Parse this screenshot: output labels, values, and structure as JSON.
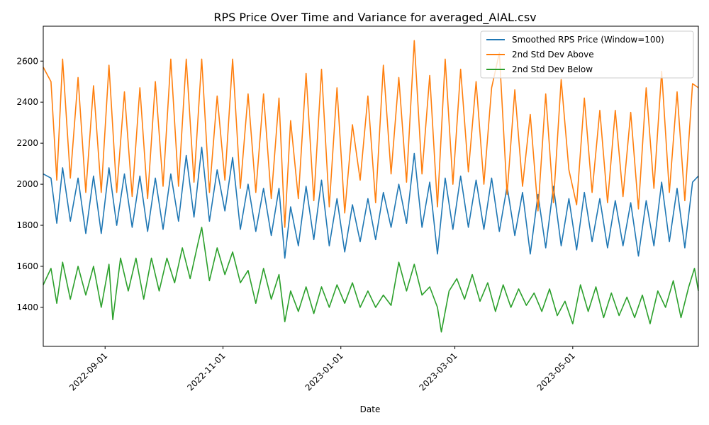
{
  "chart_data": {
    "type": "line",
    "title": "RPS Price Over Time and Variance for averaged_AIAL.csv",
    "xlabel": "Date",
    "ylabel": "",
    "x_range": [
      "2022-07-31",
      "2023-07-05"
    ],
    "ylim": [
      1210,
      2770
    ],
    "yticks": [
      1400,
      1600,
      1800,
      2000,
      2200,
      2400,
      2600
    ],
    "xticks": [
      "2022-09-01",
      "2022-11-01",
      "2023-01-01",
      "2023-03-01",
      "2023-05-01"
    ],
    "grid": false,
    "legend_position": "top-right",
    "series": [
      {
        "name": "Smoothed RPS Price (Window=100)",
        "color": "#1f77b4",
        "points": [
          [
            "2022-07-31",
            2050
          ],
          [
            "2022-08-04",
            2030
          ],
          [
            "2022-08-07",
            1810
          ],
          [
            "2022-08-10",
            2080
          ],
          [
            "2022-08-14",
            1820
          ],
          [
            "2022-08-18",
            2030
          ],
          [
            "2022-08-22",
            1760
          ],
          [
            "2022-08-26",
            2040
          ],
          [
            "2022-08-30",
            1760
          ],
          [
            "2022-09-03",
            2080
          ],
          [
            "2022-09-07",
            1800
          ],
          [
            "2022-09-11",
            2050
          ],
          [
            "2022-09-15",
            1790
          ],
          [
            "2022-09-19",
            2040
          ],
          [
            "2022-09-23",
            1770
          ],
          [
            "2022-09-27",
            2030
          ],
          [
            "2022-10-01",
            1780
          ],
          [
            "2022-10-05",
            2050
          ],
          [
            "2022-10-09",
            1820
          ],
          [
            "2022-10-13",
            2140
          ],
          [
            "2022-10-17",
            1840
          ],
          [
            "2022-10-21",
            2180
          ],
          [
            "2022-10-25",
            1820
          ],
          [
            "2022-10-29",
            2070
          ],
          [
            "2022-11-02",
            1870
          ],
          [
            "2022-11-06",
            2130
          ],
          [
            "2022-11-10",
            1780
          ],
          [
            "2022-11-14",
            2000
          ],
          [
            "2022-11-18",
            1770
          ],
          [
            "2022-11-22",
            1980
          ],
          [
            "2022-11-26",
            1750
          ],
          [
            "2022-11-30",
            1980
          ],
          [
            "2022-12-03",
            1640
          ],
          [
            "2022-12-06",
            1890
          ],
          [
            "2022-12-10",
            1700
          ],
          [
            "2022-12-14",
            1990
          ],
          [
            "2022-12-18",
            1730
          ],
          [
            "2022-12-22",
            2020
          ],
          [
            "2022-12-26",
            1700
          ],
          [
            "2022-12-30",
            1930
          ],
          [
            "2023-01-03",
            1670
          ],
          [
            "2023-01-07",
            1900
          ],
          [
            "2023-01-11",
            1720
          ],
          [
            "2023-01-15",
            1930
          ],
          [
            "2023-01-19",
            1730
          ],
          [
            "2023-01-23",
            1960
          ],
          [
            "2023-01-27",
            1790
          ],
          [
            "2023-01-31",
            2000
          ],
          [
            "2023-02-04",
            1810
          ],
          [
            "2023-02-08",
            2150
          ],
          [
            "2023-02-12",
            1790
          ],
          [
            "2023-02-16",
            2010
          ],
          [
            "2023-02-20",
            1660
          ],
          [
            "2023-02-24",
            2030
          ],
          [
            "2023-02-28",
            1780
          ],
          [
            "2023-03-04",
            2040
          ],
          [
            "2023-03-08",
            1790
          ],
          [
            "2023-03-12",
            2020
          ],
          [
            "2023-03-16",
            1780
          ],
          [
            "2023-03-20",
            2030
          ],
          [
            "2023-03-24",
            1770
          ],
          [
            "2023-03-28",
            1990
          ],
          [
            "2023-04-01",
            1750
          ],
          [
            "2023-04-05",
            1960
          ],
          [
            "2023-04-09",
            1660
          ],
          [
            "2023-04-13",
            1950
          ],
          [
            "2023-04-17",
            1690
          ],
          [
            "2023-04-21",
            1990
          ],
          [
            "2023-04-25",
            1700
          ],
          [
            "2023-04-29",
            1930
          ],
          [
            "2023-05-03",
            1680
          ],
          [
            "2023-05-07",
            1960
          ],
          [
            "2023-05-11",
            1720
          ],
          [
            "2023-05-15",
            1930
          ],
          [
            "2023-05-19",
            1690
          ],
          [
            "2023-05-23",
            1920
          ],
          [
            "2023-05-27",
            1700
          ],
          [
            "2023-05-31",
            1910
          ],
          [
            "2023-06-04",
            1650
          ],
          [
            "2023-06-08",
            1920
          ],
          [
            "2023-06-12",
            1700
          ],
          [
            "2023-06-16",
            2010
          ],
          [
            "2023-06-20",
            1720
          ],
          [
            "2023-06-24",
            1980
          ],
          [
            "2023-06-28",
            1690
          ],
          [
            "2023-07-02",
            2010
          ],
          [
            "2023-07-05",
            2040
          ]
        ]
      },
      {
        "name": "2nd Std Dev Above",
        "color": "#ff7f0e",
        "points": [
          [
            "2022-07-31",
            2570
          ],
          [
            "2022-08-04",
            2500
          ],
          [
            "2022-08-07",
            2020
          ],
          [
            "2022-08-10",
            2610
          ],
          [
            "2022-08-14",
            2030
          ],
          [
            "2022-08-18",
            2520
          ],
          [
            "2022-08-22",
            1960
          ],
          [
            "2022-08-26",
            2480
          ],
          [
            "2022-08-30",
            1960
          ],
          [
            "2022-09-03",
            2580
          ],
          [
            "2022-09-07",
            1960
          ],
          [
            "2022-09-11",
            2450
          ],
          [
            "2022-09-15",
            1940
          ],
          [
            "2022-09-19",
            2470
          ],
          [
            "2022-09-23",
            1930
          ],
          [
            "2022-09-27",
            2500
          ],
          [
            "2022-10-01",
            1990
          ],
          [
            "2022-10-05",
            2610
          ],
          [
            "2022-10-09",
            1990
          ],
          [
            "2022-10-13",
            2610
          ],
          [
            "2022-10-17",
            2010
          ],
          [
            "2022-10-21",
            2610
          ],
          [
            "2022-10-25",
            1960
          ],
          [
            "2022-10-29",
            2430
          ],
          [
            "2022-11-02",
            2020
          ],
          [
            "2022-11-06",
            2610
          ],
          [
            "2022-11-10",
            1980
          ],
          [
            "2022-11-14",
            2440
          ],
          [
            "2022-11-18",
            1960
          ],
          [
            "2022-11-22",
            2440
          ],
          [
            "2022-11-26",
            1930
          ],
          [
            "2022-11-30",
            2420
          ],
          [
            "2022-12-03",
            1790
          ],
          [
            "2022-12-06",
            2310
          ],
          [
            "2022-12-10",
            1930
          ],
          [
            "2022-12-14",
            2540
          ],
          [
            "2022-12-18",
            1920
          ],
          [
            "2022-12-22",
            2560
          ],
          [
            "2022-12-26",
            1890
          ],
          [
            "2022-12-30",
            2470
          ],
          [
            "2023-01-03",
            1860
          ],
          [
            "2023-01-07",
            2290
          ],
          [
            "2023-01-11",
            2020
          ],
          [
            "2023-01-15",
            2430
          ],
          [
            "2023-01-19",
            1910
          ],
          [
            "2023-01-23",
            2580
          ],
          [
            "2023-01-27",
            2050
          ],
          [
            "2023-01-31",
            2520
          ],
          [
            "2023-02-04",
            2010
          ],
          [
            "2023-02-08",
            2700
          ],
          [
            "2023-02-12",
            2050
          ],
          [
            "2023-02-16",
            2530
          ],
          [
            "2023-02-20",
            1890
          ],
          [
            "2023-02-24",
            2610
          ],
          [
            "2023-02-28",
            2000
          ],
          [
            "2023-03-04",
            2560
          ],
          [
            "2023-03-08",
            2060
          ],
          [
            "2023-03-12",
            2500
          ],
          [
            "2023-03-16",
            2000
          ],
          [
            "2023-03-20",
            2470
          ],
          [
            "2023-03-24",
            2640
          ],
          [
            "2023-03-28",
            1950
          ],
          [
            "2023-04-01",
            2460
          ],
          [
            "2023-04-05",
            1990
          ],
          [
            "2023-04-09",
            2340
          ],
          [
            "2023-04-13",
            1870
          ],
          [
            "2023-04-17",
            2440
          ],
          [
            "2023-04-21",
            1910
          ],
          [
            "2023-04-25",
            2510
          ],
          [
            "2023-04-29",
            2070
          ],
          [
            "2023-05-03",
            1900
          ],
          [
            "2023-05-07",
            2420
          ],
          [
            "2023-05-11",
            1960
          ],
          [
            "2023-05-15",
            2360
          ],
          [
            "2023-05-19",
            1910
          ],
          [
            "2023-05-23",
            2360
          ],
          [
            "2023-05-27",
            1940
          ],
          [
            "2023-05-31",
            2350
          ],
          [
            "2023-06-04",
            1880
          ],
          [
            "2023-06-08",
            2470
          ],
          [
            "2023-06-12",
            1980
          ],
          [
            "2023-06-16",
            2550
          ],
          [
            "2023-06-20",
            1960
          ],
          [
            "2023-06-24",
            2450
          ],
          [
            "2023-06-28",
            1920
          ],
          [
            "2023-07-02",
            2490
          ],
          [
            "2023-07-05",
            2470
          ]
        ]
      },
      {
        "name": "2nd Std Dev Below",
        "color": "#2ca02c",
        "points": [
          [
            "2022-07-31",
            1510
          ],
          [
            "2022-08-04",
            1590
          ],
          [
            "2022-08-07",
            1420
          ],
          [
            "2022-08-10",
            1620
          ],
          [
            "2022-08-14",
            1440
          ],
          [
            "2022-08-18",
            1600
          ],
          [
            "2022-08-22",
            1460
          ],
          [
            "2022-08-26",
            1600
          ],
          [
            "2022-08-30",
            1400
          ],
          [
            "2022-09-03",
            1610
          ],
          [
            "2022-09-05",
            1340
          ],
          [
            "2022-09-09",
            1640
          ],
          [
            "2022-09-13",
            1480
          ],
          [
            "2022-09-17",
            1640
          ],
          [
            "2022-09-21",
            1440
          ],
          [
            "2022-09-25",
            1640
          ],
          [
            "2022-09-29",
            1480
          ],
          [
            "2022-10-03",
            1640
          ],
          [
            "2022-10-07",
            1520
          ],
          [
            "2022-10-11",
            1690
          ],
          [
            "2022-10-15",
            1540
          ],
          [
            "2022-10-19",
            1710
          ],
          [
            "2022-10-21",
            1790
          ],
          [
            "2022-10-25",
            1530
          ],
          [
            "2022-10-29",
            1690
          ],
          [
            "2022-11-02",
            1560
          ],
          [
            "2022-11-06",
            1670
          ],
          [
            "2022-11-10",
            1520
          ],
          [
            "2022-11-14",
            1580
          ],
          [
            "2022-11-18",
            1420
          ],
          [
            "2022-11-22",
            1590
          ],
          [
            "2022-11-26",
            1440
          ],
          [
            "2022-11-30",
            1560
          ],
          [
            "2022-12-03",
            1330
          ],
          [
            "2022-12-06",
            1480
          ],
          [
            "2022-12-10",
            1380
          ],
          [
            "2022-12-14",
            1500
          ],
          [
            "2022-12-18",
            1370
          ],
          [
            "2022-12-22",
            1500
          ],
          [
            "2022-12-26",
            1400
          ],
          [
            "2022-12-30",
            1510
          ],
          [
            "2023-01-03",
            1420
          ],
          [
            "2023-01-07",
            1520
          ],
          [
            "2023-01-11",
            1400
          ],
          [
            "2023-01-15",
            1480
          ],
          [
            "2023-01-19",
            1400
          ],
          [
            "2023-01-23",
            1460
          ],
          [
            "2023-01-27",
            1410
          ],
          [
            "2023-01-31",
            1620
          ],
          [
            "2023-02-04",
            1480
          ],
          [
            "2023-02-08",
            1610
          ],
          [
            "2023-02-12",
            1460
          ],
          [
            "2023-02-16",
            1500
          ],
          [
            "2023-02-20",
            1400
          ],
          [
            "2023-02-22",
            1280
          ],
          [
            "2023-02-26",
            1480
          ],
          [
            "2023-03-02",
            1540
          ],
          [
            "2023-03-06",
            1440
          ],
          [
            "2023-03-10",
            1560
          ],
          [
            "2023-03-14",
            1430
          ],
          [
            "2023-03-18",
            1520
          ],
          [
            "2023-03-22",
            1380
          ],
          [
            "2023-03-26",
            1510
          ],
          [
            "2023-03-30",
            1400
          ],
          [
            "2023-04-03",
            1490
          ],
          [
            "2023-04-07",
            1410
          ],
          [
            "2023-04-11",
            1470
          ],
          [
            "2023-04-15",
            1380
          ],
          [
            "2023-04-19",
            1490
          ],
          [
            "2023-04-23",
            1360
          ],
          [
            "2023-04-27",
            1430
          ],
          [
            "2023-05-01",
            1320
          ],
          [
            "2023-05-05",
            1510
          ],
          [
            "2023-05-09",
            1380
          ],
          [
            "2023-05-13",
            1500
          ],
          [
            "2023-05-17",
            1350
          ],
          [
            "2023-05-21",
            1470
          ],
          [
            "2023-05-25",
            1360
          ],
          [
            "2023-05-29",
            1450
          ],
          [
            "2023-06-02",
            1350
          ],
          [
            "2023-06-06",
            1460
          ],
          [
            "2023-06-10",
            1320
          ],
          [
            "2023-06-14",
            1480
          ],
          [
            "2023-06-18",
            1400
          ],
          [
            "2023-06-22",
            1530
          ],
          [
            "2023-06-26",
            1350
          ],
          [
            "2023-06-30",
            1500
          ],
          [
            "2023-07-03",
            1590
          ],
          [
            "2023-07-05",
            1480
          ]
        ]
      }
    ]
  }
}
